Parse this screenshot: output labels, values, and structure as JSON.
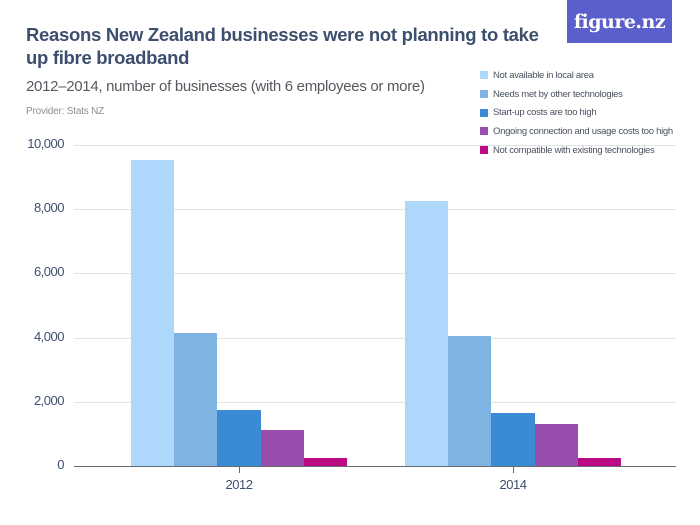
{
  "header": {
    "title": "Reasons New Zealand businesses were not planning to take up fibre broadband",
    "subtitle": "2012–2014, number of businesses (with 6 employees or more)",
    "provider": "Provider: Stats NZ",
    "logo": "figure.nz"
  },
  "colors": {
    "logo_bg": "#5a5fcc",
    "series": [
      "#aed8fb",
      "#7fb4e2",
      "#3a8ad4",
      "#984daf",
      "#bb0b84"
    ]
  },
  "y_axis": {
    "ticks": [
      "10,000",
      "8,000",
      "6,000",
      "4,000",
      "2,000",
      "0"
    ]
  },
  "x_axis": {
    "ticks": [
      "2012",
      "2014"
    ]
  },
  "legend": [
    {
      "label": "Not available in local area"
    },
    {
      "label": "Needs met by other technologies"
    },
    {
      "label": "Start-up costs are too high"
    },
    {
      "label": "Ongoing connection and usage costs too high"
    },
    {
      "label": "Not compatible with existing technologies"
    }
  ],
  "chart_data": {
    "type": "bar",
    "title": "Reasons New Zealand businesses were not planning to take up fibre broadband",
    "subtitle": "2012–2014, number of businesses (with 6 employees or more)",
    "xlabel": "",
    "ylabel": "",
    "categories": [
      "2012",
      "2014"
    ],
    "series": [
      {
        "name": "Not available in local area",
        "values": [
          9530,
          8260
        ]
      },
      {
        "name": "Needs met by other technologies",
        "values": [
          4140,
          4040
        ]
      },
      {
        "name": "Start-up costs are too high",
        "values": [
          1745,
          1650
        ]
      },
      {
        "name": "Ongoing connection and usage costs too high",
        "values": [
          1120,
          1300
        ]
      },
      {
        "name": "Not compatible with existing technologies",
        "values": [
          260,
          260
        ]
      }
    ],
    "ylim": [
      0,
      10000
    ],
    "yticks": [
      0,
      2000,
      4000,
      6000,
      8000,
      10000
    ],
    "grid": true,
    "legend_position": "top-right"
  }
}
